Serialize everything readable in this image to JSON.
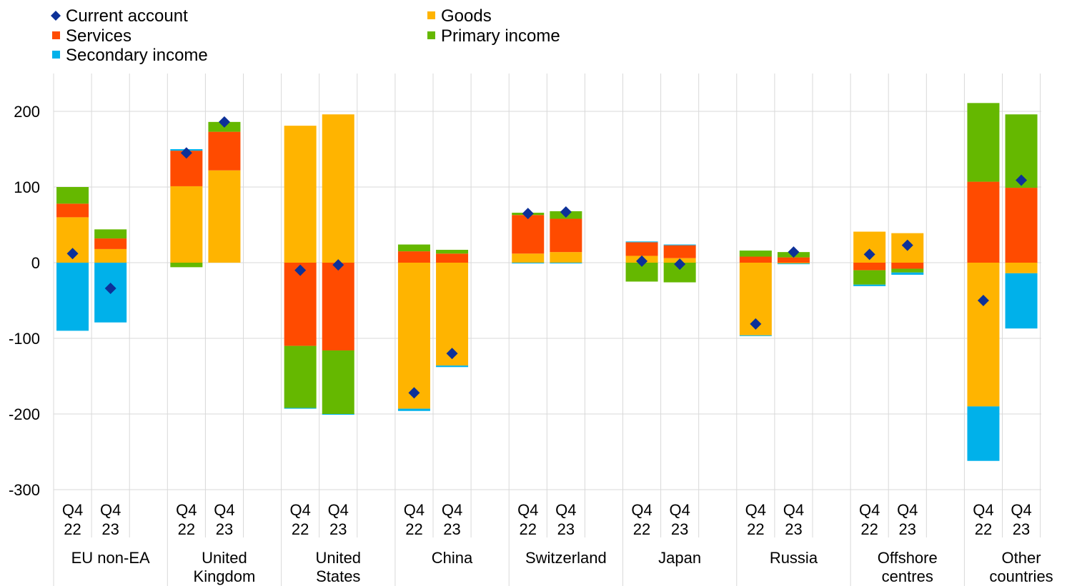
{
  "chart_data": {
    "type": "bar",
    "stacked": true,
    "title": "",
    "xlabel": "",
    "ylabel": "",
    "ylim": [
      -300,
      250
    ],
    "yticks": [
      200,
      100,
      0,
      -100,
      -200,
      -300
    ],
    "grid": true,
    "legend_position": "top-left",
    "legend": [
      {
        "key": "current",
        "label": "Current account",
        "marker": "diamond",
        "color": "#0d3198"
      },
      {
        "key": "goods",
        "label": "Goods",
        "marker": "square",
        "color": "#ffb400"
      },
      {
        "key": "services",
        "label": "Services",
        "marker": "square",
        "color": "#ff4b00"
      },
      {
        "key": "primary",
        "label": "Primary income",
        "marker": "square",
        "color": "#65b800"
      },
      {
        "key": "secondary",
        "label": "Secondary income",
        "marker": "square",
        "color": "#00b1ea"
      }
    ],
    "groups": [
      {
        "label": [
          "EU non-EA"
        ],
        "bars": [
          {
            "q": [
              "Q4",
              "22"
            ],
            "goods": 60,
            "services": 18,
            "primary": 22,
            "secondary": -90,
            "current": 12
          },
          {
            "q": [
              "Q4",
              "23"
            ],
            "goods": 18,
            "services": 14,
            "primary": 12,
            "secondary": -79,
            "current": -34
          }
        ]
      },
      {
        "label": [
          "United",
          "Kingdom"
        ],
        "bars": [
          {
            "q": [
              "Q4",
              "22"
            ],
            "goods": 101,
            "services": 47,
            "primary": -6,
            "secondary": 2,
            "current": 145
          },
          {
            "q": [
              "Q4",
              "23"
            ],
            "goods": 122,
            "services": 51,
            "primary": 13,
            "secondary": 0,
            "current": 186
          }
        ]
      },
      {
        "label": [
          "United",
          "States"
        ],
        "bars": [
          {
            "q": [
              "Q4",
              "22"
            ],
            "goods": 181,
            "services": -110,
            "primary": -82,
            "secondary": -1,
            "current": -10
          },
          {
            "q": [
              "Q4",
              "23"
            ],
            "goods": 196,
            "services": -116,
            "primary": -84,
            "secondary": -1,
            "current": -3
          }
        ]
      },
      {
        "label": [
          "China"
        ],
        "bars": [
          {
            "q": [
              "Q4",
              "22"
            ],
            "goods": -193,
            "services": 15,
            "primary": 9,
            "secondary": -3,
            "current": -172
          },
          {
            "q": [
              "Q4",
              "23"
            ],
            "goods": -136,
            "services": 12,
            "primary": 5,
            "secondary": -2,
            "current": -120
          }
        ]
      },
      {
        "label": [
          "Switzerland"
        ],
        "bars": [
          {
            "q": [
              "Q4",
              "22"
            ],
            "goods": 12,
            "services": 51,
            "primary": 3,
            "secondary": -1,
            "current": 65
          },
          {
            "q": [
              "Q4",
              "23"
            ],
            "goods": 14,
            "services": 44,
            "primary": 10,
            "secondary": -1,
            "current": 67
          }
        ]
      },
      {
        "label": [
          "Japan"
        ],
        "bars": [
          {
            "q": [
              "Q4",
              "22"
            ],
            "goods": 9,
            "services": 18,
            "primary": -25,
            "secondary": 1,
            "current": 2
          },
          {
            "q": [
              "Q4",
              "23"
            ],
            "goods": 6,
            "services": 17,
            "primary": -26,
            "secondary": 1,
            "current": -2
          }
        ]
      },
      {
        "label": [
          "Russia"
        ],
        "bars": [
          {
            "q": [
              "Q4",
              "22"
            ],
            "goods": -96,
            "services": 8,
            "primary": 8,
            "secondary": -1,
            "current": -81
          },
          {
            "q": [
              "Q4",
              "23"
            ],
            "goods": -1,
            "services": 7,
            "primary": 7,
            "secondary": -1,
            "current": 14
          }
        ]
      },
      {
        "label": [
          "Offshore",
          "centres"
        ],
        "bars": [
          {
            "q": [
              "Q4",
              "22"
            ],
            "goods": 41,
            "services": -10,
            "primary": -19,
            "secondary": -2,
            "current": 11
          },
          {
            "q": [
              "Q4",
              "23"
            ],
            "goods": 39,
            "services": -8,
            "primary": -5,
            "secondary": -3,
            "current": 23
          }
        ]
      },
      {
        "label": [
          "Other",
          "countries"
        ],
        "bars": [
          {
            "q": [
              "Q4",
              "22"
            ],
            "goods": -190,
            "services": 107,
            "primary": 104,
            "secondary": -72,
            "current": -50
          },
          {
            "q": [
              "Q4",
              "23"
            ],
            "goods": -14,
            "services": 99,
            "primary": 97,
            "secondary": -73,
            "current": 109
          }
        ]
      }
    ]
  }
}
